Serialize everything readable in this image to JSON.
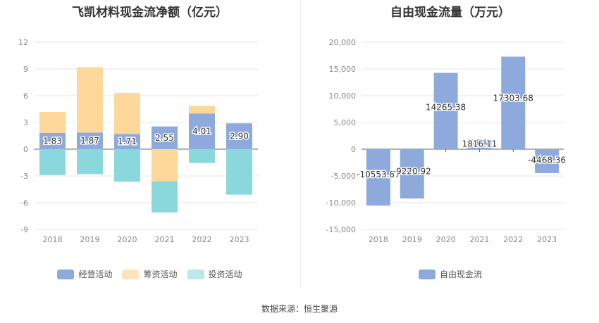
{
  "chart_data": [
    {
      "type": "bar",
      "title": "飞凯材料现金流净额（亿元）",
      "categories": [
        "2018",
        "2019",
        "2020",
        "2021",
        "2022",
        "2023"
      ],
      "yticks": [
        "12",
        "9",
        "6",
        "3",
        "0",
        "-3",
        "-6",
        "-9"
      ],
      "ylim": [
        -9,
        12
      ],
      "series": [
        {
          "name": "经营活动",
          "color": "#8eaadc",
          "values": [
            1.83,
            1.87,
            1.71,
            2.55,
            4.01,
            2.9
          ],
          "labels": [
            "1.83",
            "1.87",
            "1.71",
            "2.55",
            "4.01",
            "2.90"
          ]
        },
        {
          "name": "筹资活动",
          "color": "#fdd89a",
          "values": [
            2.35,
            7.33,
            4.6,
            -3.6,
            0.85,
            0
          ]
        },
        {
          "name": "投资活动",
          "color": "#8bd8dc",
          "values": [
            -2.9,
            -2.8,
            -3.65,
            -3.5,
            -1.55,
            -5.1
          ]
        }
      ],
      "legend_position": "bottom",
      "grid": true
    },
    {
      "type": "bar",
      "title": "自由现金流量（万元）",
      "categories": [
        "2018",
        "2019",
        "2020",
        "2021",
        "2022",
        "2023"
      ],
      "yticks": [
        "20,000",
        "15,000",
        "10,000",
        "5,000",
        "0",
        "-5,000",
        "-10,000",
        "-15,000"
      ],
      "ylim": [
        -15000,
        20000
      ],
      "series": [
        {
          "name": "自由现金流",
          "color": "#8eaadc",
          "values": [
            -10553.87,
            -9220.92,
            14265.38,
            1816.11,
            17303.68,
            -4468.36
          ],
          "labels": [
            "-10553.87",
            "-9220.92",
            "14265.38",
            "1816.11",
            "17303.68",
            "-4468.36"
          ]
        }
      ],
      "legend_position": "bottom",
      "grid": true
    }
  ],
  "source": "数据来源：恒生聚源"
}
